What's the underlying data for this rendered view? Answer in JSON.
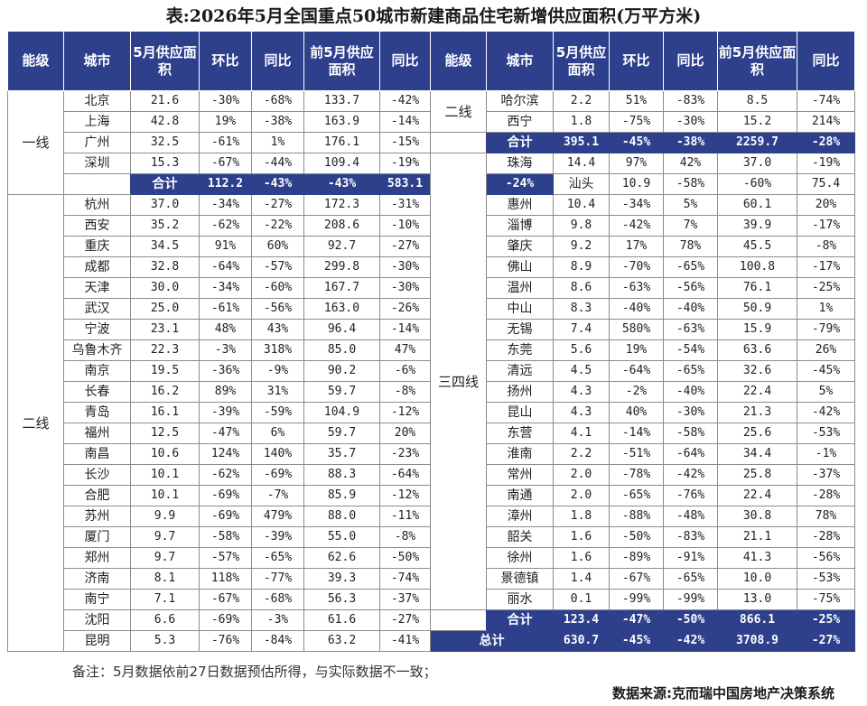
{
  "title": "表:2026年5月全国重点50城市新建商品住宅新增供应面积(万平方米)",
  "headers": [
    "能级",
    "城市",
    "5月供应面积",
    "环比",
    "同比",
    "前5月供应面积",
    "同比",
    "能级",
    "城市",
    "5月供应面积",
    "环比",
    "同比",
    "前5月供应面积",
    "同比"
  ],
  "left": {
    "tier1": {
      "tier": "一线",
      "rows": [
        [
          "北京",
          "21.6",
          "-30%",
          "-68%",
          "133.7",
          "-42%"
        ],
        [
          "上海",
          "42.8",
          "19%",
          "-38%",
          "163.9",
          "-14%"
        ],
        [
          "广州",
          "32.5",
          "-61%",
          "1%",
          "176.1",
          "-15%"
        ],
        [
          "深圳",
          "15.3",
          "-67%",
          "-44%",
          "109.4",
          "-19%"
        ]
      ],
      "total": [
        "合计",
        "112.2",
        "-43%",
        "-43%",
        "583.1",
        "-24%"
      ]
    },
    "tier2": {
      "tier": "二线",
      "rows": [
        [
          "杭州",
          "37.0",
          "-34%",
          "-27%",
          "172.3",
          "-31%"
        ],
        [
          "西安",
          "35.2",
          "-62%",
          "-22%",
          "208.6",
          "-10%"
        ],
        [
          "重庆",
          "34.5",
          "91%",
          "60%",
          "92.7",
          "-27%"
        ],
        [
          "成都",
          "32.8",
          "-64%",
          "-57%",
          "299.8",
          "-30%"
        ],
        [
          "天津",
          "30.0",
          "-34%",
          "-60%",
          "167.7",
          "-30%"
        ],
        [
          "武汉",
          "25.0",
          "-61%",
          "-56%",
          "163.0",
          "-26%"
        ],
        [
          "宁波",
          "23.1",
          "48%",
          "43%",
          "96.4",
          "-14%"
        ],
        [
          "乌鲁木齐",
          "22.3",
          "-3%",
          "318%",
          "85.0",
          "47%"
        ],
        [
          "南京",
          "19.5",
          "-36%",
          "-9%",
          "90.2",
          "-6%"
        ],
        [
          "长春",
          "16.2",
          "89%",
          "31%",
          "59.7",
          "-8%"
        ],
        [
          "青岛",
          "16.1",
          "-39%",
          "-59%",
          "104.9",
          "-12%"
        ],
        [
          "福州",
          "12.5",
          "-47%",
          "6%",
          "59.7",
          "20%"
        ],
        [
          "南昌",
          "10.6",
          "124%",
          "140%",
          "35.7",
          "-23%"
        ],
        [
          "长沙",
          "10.1",
          "-62%",
          "-69%",
          "88.3",
          "-64%"
        ],
        [
          "合肥",
          "10.1",
          "-69%",
          "-7%",
          "85.9",
          "-12%"
        ],
        [
          "苏州",
          "9.9",
          "-69%",
          "479%",
          "88.0",
          "-11%"
        ],
        [
          "厦门",
          "9.7",
          "-58%",
          "-39%",
          "55.0",
          "-8%"
        ],
        [
          "郑州",
          "9.7",
          "-57%",
          "-65%",
          "62.6",
          "-50%"
        ],
        [
          "济南",
          "8.1",
          "118%",
          "-77%",
          "39.3",
          "-74%"
        ],
        [
          "南宁",
          "7.1",
          "-67%",
          "-68%",
          "56.3",
          "-37%"
        ],
        [
          "沈阳",
          "6.6",
          "-69%",
          "-3%",
          "61.6",
          "-27%"
        ],
        [
          "昆明",
          "5.3",
          "-76%",
          "-84%",
          "63.2",
          "-41%"
        ]
      ]
    }
  },
  "right": {
    "tier2_cont": {
      "tier": "二线",
      "rows": [
        [
          "哈尔滨",
          "2.2",
          "51%",
          "-83%",
          "8.5",
          "-74%"
        ],
        [
          "西宁",
          "1.8",
          "-75%",
          "-30%",
          "15.2",
          "214%"
        ]
      ],
      "total": [
        "合计",
        "395.1",
        "-45%",
        "-38%",
        "2259.7",
        "-28%"
      ]
    },
    "tier34": {
      "tier": "三四线",
      "rows": [
        [
          "珠海",
          "14.4",
          "97%",
          "42%",
          "37.0",
          "-19%"
        ],
        [
          "汕头",
          "10.9",
          "-58%",
          "-60%",
          "75.4",
          "7%"
        ],
        [
          "惠州",
          "10.4",
          "-34%",
          "5%",
          "60.1",
          "20%"
        ],
        [
          "淄博",
          "9.8",
          "-42%",
          "7%",
          "39.9",
          "-17%"
        ],
        [
          "肇庆",
          "9.2",
          "17%",
          "78%",
          "45.5",
          "-8%"
        ],
        [
          "佛山",
          "8.9",
          "-70%",
          "-65%",
          "100.8",
          "-17%"
        ],
        [
          "温州",
          "8.6",
          "-63%",
          "-56%",
          "76.1",
          "-25%"
        ],
        [
          "中山",
          "8.3",
          "-40%",
          "-40%",
          "50.9",
          "1%"
        ],
        [
          "无锡",
          "7.4",
          "580%",
          "-63%",
          "15.9",
          "-79%"
        ],
        [
          "东莞",
          "5.6",
          "19%",
          "-54%",
          "63.6",
          "26%"
        ],
        [
          "清远",
          "4.5",
          "-64%",
          "-65%",
          "32.6",
          "-45%"
        ],
        [
          "扬州",
          "4.3",
          "-2%",
          "-40%",
          "22.4",
          "5%"
        ],
        [
          "昆山",
          "4.3",
          "40%",
          "-30%",
          "21.3",
          "-42%"
        ],
        [
          "东营",
          "4.1",
          "-14%",
          "-58%",
          "25.6",
          "-53%"
        ],
        [
          "淮南",
          "2.2",
          "-51%",
          "-64%",
          "34.4",
          "-1%"
        ],
        [
          "常州",
          "2.0",
          "-78%",
          "-42%",
          "25.8",
          "-37%"
        ],
        [
          "南通",
          "2.0",
          "-65%",
          "-76%",
          "22.4",
          "-28%"
        ],
        [
          "漳州",
          "1.8",
          "-88%",
          "-48%",
          "30.8",
          "78%"
        ],
        [
          "韶关",
          "1.6",
          "-50%",
          "-83%",
          "21.1",
          "-28%"
        ],
        [
          "徐州",
          "1.6",
          "-89%",
          "-91%",
          "41.3",
          "-56%"
        ],
        [
          "景德镇",
          "1.4",
          "-67%",
          "-65%",
          "10.0",
          "-53%"
        ],
        [
          "丽水",
          "0.1",
          "-99%",
          "-99%",
          "13.0",
          "-75%"
        ]
      ],
      "total": [
        "合计",
        "123.4",
        "-47%",
        "-50%",
        "866.1",
        "-25%"
      ]
    },
    "grand_total": [
      "总计",
      "630.7",
      "-45%",
      "-42%",
      "3708.9",
      "-27%"
    ]
  },
  "note": "备注：5月数据依前27日数据预估所得，与实际数据不一致；",
  "source": "数据来源:克而瑞中国房地产决策系统",
  "colors": {
    "header_bg": "#2e3f8c",
    "header_text": "#ffffff"
  }
}
